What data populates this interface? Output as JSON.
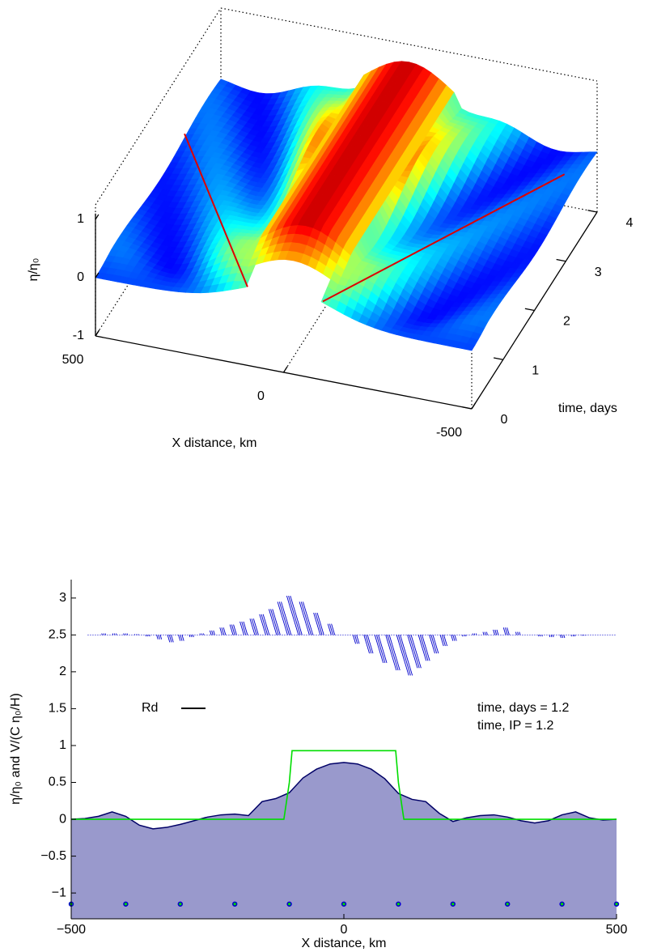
{
  "chart_data": [
    {
      "type": "surface3d",
      "zlabel": "η/η₀",
      "xlabel": "X distance, km",
      "ylabel": "time, days",
      "xlim": [
        -500,
        500
      ],
      "xticks": [
        500,
        0,
        -500
      ],
      "ylim": [
        0,
        4
      ],
      "yticks": [
        0,
        1,
        2,
        3,
        4
      ],
      "zlim": [
        -1,
        1.25
      ],
      "zticks": [
        1,
        0,
        -1
      ]
    },
    {
      "type": "line",
      "xlabel": "X distance, km",
      "ylabel": "η/η₀  and  V/(C η₀/H)",
      "xlim": [
        -500,
        500
      ],
      "xticks": [
        {
          "value": -500,
          "label": "−500"
        },
        0,
        500
      ],
      "ylim": [
        -1.35,
        3.25
      ],
      "yticks": [
        {
          "value": -1,
          "label": "−1"
        },
        {
          "value": -0.5,
          "label": "−0.5"
        },
        0,
        0.5,
        1,
        1.5,
        2,
        2.5,
        3
      ],
      "annotations": [
        "Rd",
        "time, days  = 1.2",
        "time, IP = 1.2"
      ],
      "series": [
        {
          "type": "area",
          "color": "#9999cc",
          "line_color": "#000066",
          "x": [
            -500,
            -475,
            -450,
            -425,
            -400,
            -375,
            -350,
            -325,
            -300,
            -275,
            -250,
            -225,
            -200,
            -175,
            -150,
            -125,
            -100,
            -75,
            -50,
            -25,
            0,
            25,
            50,
            75,
            100,
            125,
            150,
            175,
            200,
            225,
            250,
            275,
            300,
            325,
            350,
            375,
            400,
            425,
            450,
            475,
            500
          ],
          "values": [
            0,
            0.01,
            0.04,
            0.1,
            0.04,
            -0.08,
            -0.13,
            -0.11,
            -0.07,
            -0.02,
            0.03,
            0.06,
            0.07,
            0.05,
            0.24,
            0.28,
            0.36,
            0.56,
            0.68,
            0.75,
            0.77,
            0.75,
            0.68,
            0.55,
            0.35,
            0.27,
            0.24,
            0.08,
            -0.03,
            0.02,
            0.05,
            0.06,
            0.03,
            -0.02,
            -0.05,
            -0.02,
            0.06,
            0.1,
            0.02,
            -0.01,
            0
          ]
        },
        {
          "type": "line",
          "color": "#00dd00",
          "x": [
            -500,
            -110,
            -100,
            -95,
            95,
            100,
            110,
            500
          ],
          "values": [
            0,
            0,
            0.5,
            0.93,
            0.93,
            0.5,
            0,
            0
          ]
        },
        {
          "type": "quiver",
          "color": "#0000cc",
          "baseline": 2.5,
          "x": [
            -440,
            -420,
            -400,
            -380,
            -360,
            -340,
            -320,
            -300,
            -280,
            -260,
            -240,
            -220,
            -200,
            -180,
            -160,
            -140,
            -120,
            -100,
            -80,
            -60,
            -40,
            -20,
            0,
            20,
            40,
            60,
            80,
            100,
            120,
            140,
            160,
            180,
            200,
            220,
            240,
            260,
            280,
            300,
            320,
            340,
            360,
            380,
            400,
            420,
            440,
            460,
            480,
            500
          ],
          "values": [
            2.52,
            2.52,
            2.52,
            2.51,
            2.48,
            2.44,
            2.4,
            2.42,
            2.47,
            2.52,
            2.56,
            2.6,
            2.64,
            2.68,
            2.72,
            2.78,
            2.85,
            2.95,
            3.03,
            2.95,
            2.8,
            2.65,
            2.5,
            2.38,
            2.25,
            2.12,
            2.02,
            1.95,
            2.05,
            2.15,
            2.25,
            2.35,
            2.42,
            2.48,
            2.52,
            2.54,
            2.57,
            2.6,
            2.54,
            2.5,
            2.48,
            2.47,
            2.46,
            2.48,
            2.49,
            2.5,
            2.5,
            2.5
          ]
        },
        {
          "type": "scatter",
          "color": "#0000cc",
          "inner_color": "#00dd00",
          "x": [
            -500,
            -400,
            -300,
            -200,
            -100,
            0,
            100,
            200,
            300,
            400,
            500
          ],
          "values": [
            -1.15,
            -1.15,
            -1.15,
            -1.15,
            -1.15,
            -1.15,
            -1.15,
            -1.15,
            -1.15,
            -1.15,
            -1.15
          ]
        }
      ]
    }
  ]
}
